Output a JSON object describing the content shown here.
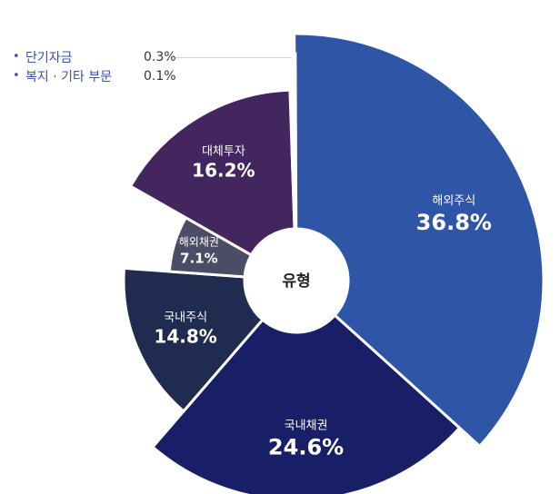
{
  "chart_data": {
    "type": "pie",
    "variant": "rose-donut",
    "center_label": "유형",
    "slices": [
      {
        "label": "해외주식",
        "value": 36.8,
        "value_text": "36.8%",
        "color": "#2f56a6"
      },
      {
        "label": "국내채권",
        "value": 24.6,
        "value_text": "24.6%",
        "color": "#181f66"
      },
      {
        "label": "국내주식",
        "value": 14.8,
        "value_text": "14.8%",
        "color": "#1f2b4f"
      },
      {
        "label": "해외채권",
        "value": 7.1,
        "value_text": "7.1%",
        "color": "#4c4c66"
      },
      {
        "label": "대체투자",
        "value": 16.2,
        "value_text": "16.2%",
        "color": "#44265e"
      },
      {
        "label": "단기자금",
        "value": 0.3,
        "value_text": "0.3%",
        "color": "#222222"
      },
      {
        "label": "복지 · 기타 부문",
        "value": 0.1,
        "value_text": "0.1%",
        "color": "#111111"
      }
    ]
  },
  "legend": [
    {
      "bullet": "•",
      "label": "단기자금",
      "value": "0.3%"
    },
    {
      "bullet": "•",
      "label": "복지 · 기타 부문",
      "value": "0.1%"
    }
  ]
}
